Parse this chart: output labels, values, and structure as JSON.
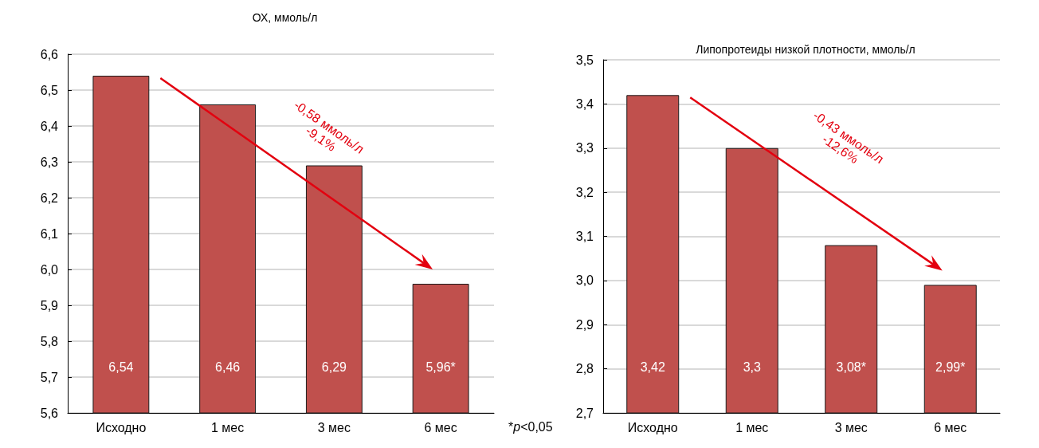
{
  "chart_data": [
    {
      "type": "bar",
      "title": "ОХ, ммоль/л",
      "categories": [
        "Исходно",
        "1 мес",
        "3 мес",
        "6 мес"
      ],
      "values": [
        6.54,
        6.46,
        6.29,
        5.96
      ],
      "value_labels": [
        "6,54",
        "6,46",
        "6,29",
        "5,96*"
      ],
      "color": "#c0504d",
      "ylim": [
        5.6,
        6.6
      ],
      "yticks": [
        {
          "value": 5.6,
          "label": "5,6"
        },
        {
          "value": 5.7,
          "label": "5,7"
        },
        {
          "value": 5.8,
          "label": "5,8"
        },
        {
          "value": 5.9,
          "label": "5,9"
        },
        {
          "value": 6.0,
          "label": "6,0"
        },
        {
          "value": 6.1,
          "label": "6,1"
        },
        {
          "value": 6.2,
          "label": "6,2"
        },
        {
          "value": 6.3,
          "label": "6,3"
        },
        {
          "value": 6.4,
          "label": "6,4"
        },
        {
          "value": 6.5,
          "label": "6,5"
        },
        {
          "value": 6.6,
          "label": "6,6"
        }
      ],
      "grid": "y",
      "annotations": [
        "-0,58 ммоль/л",
        "-9,1%",
        "*p<0,05"
      ]
    },
    {
      "type": "bar",
      "title": "Липопротеиды низкой плотности, ммоль/л",
      "categories": [
        "Исходно",
        "1 мес",
        "3 мес",
        "6 мес"
      ],
      "values": [
        3.42,
        3.3,
        3.08,
        2.99
      ],
      "value_labels": [
        "3,42",
        "3,3",
        "3,08*",
        "2,99*"
      ],
      "color": "#c0504d",
      "ylim": [
        2.7,
        3.5
      ],
      "yticks": [
        {
          "value": 2.7,
          "label": "2,7"
        },
        {
          "value": 2.8,
          "label": "2,8"
        },
        {
          "value": 2.9,
          "label": "2,9"
        },
        {
          "value": 3.0,
          "label": "3,0"
        },
        {
          "value": 3.1,
          "label": "3,1"
        },
        {
          "value": 3.2,
          "label": "3,2"
        },
        {
          "value": 3.3,
          "label": "3,3"
        },
        {
          "value": 3.4,
          "label": "3,4"
        },
        {
          "value": 3.5,
          "label": "3,5"
        }
      ],
      "grid": "y",
      "annotations": [
        "-0,43 ммоль/л",
        "-12,6%"
      ]
    }
  ]
}
